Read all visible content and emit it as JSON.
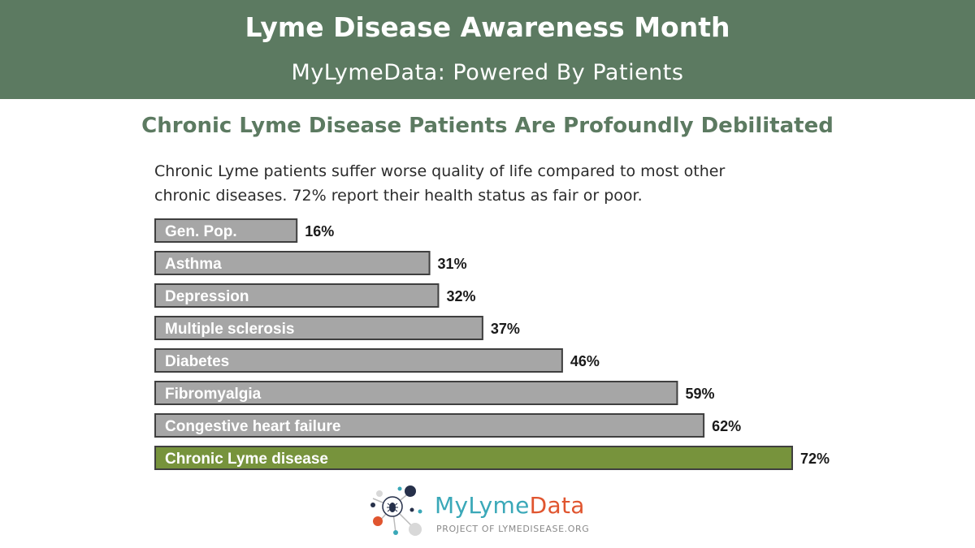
{
  "banner": {
    "title": "Lyme Disease Awareness Month",
    "subtitle": "MyLymeData: Powered By Patients"
  },
  "colors": {
    "banner": "#5c7a61",
    "bar_default": "#a6a6a6",
    "bar_highlight": "#77933c",
    "bar_border": "#3f3f3f"
  },
  "chart_data": {
    "type": "bar",
    "orientation": "horizontal",
    "title": "Chronic Lyme Disease Patients Are Profoundly Debilitated",
    "subtitle": "Chronic Lyme patients suffer worse quality of life compared to most other chronic diseases. 72% report their health status as fair or poor.",
    "categories": [
      "Gen. Pop.",
      "Asthma",
      "Depression",
      "Multiple sclerosis",
      "Diabetes",
      "Fibromyalgia",
      "Congestive heart failure",
      "Chronic Lyme disease"
    ],
    "values": [
      16,
      31,
      32,
      37,
      46,
      59,
      62,
      72
    ],
    "data_labels": [
      "16%",
      "31%",
      "32%",
      "37%",
      "46%",
      "59%",
      "62%",
      "72%"
    ],
    "highlight": "Chronic Lyme disease",
    "xlim": [
      0,
      100
    ],
    "grid": false,
    "legend": "none"
  },
  "logo": {
    "name_part1": "MyLyme",
    "name_part2": "Data",
    "tagline": "PROJECT OF LYMEDISEASE.ORG"
  }
}
